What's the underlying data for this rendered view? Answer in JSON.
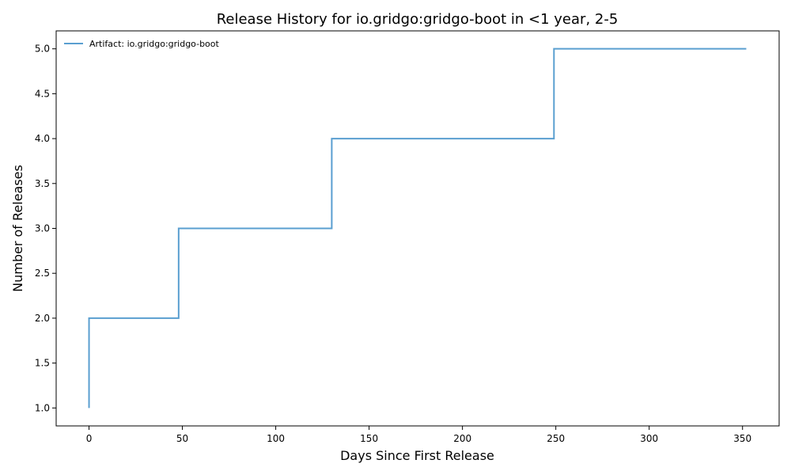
{
  "chart_data": {
    "type": "line",
    "drawstyle": "steps-post",
    "title": "Release History for io.gridgo:gridgo-boot in <1 year, 2-5",
    "xlabel": "Days Since First Release",
    "ylabel": "Number of Releases",
    "xlim": [
      -17.6,
      369.6
    ],
    "ylim": [
      0.8,
      5.2
    ],
    "xticks": [
      0,
      50,
      100,
      150,
      200,
      250,
      300,
      350
    ],
    "xtick_labels": [
      "0",
      "50",
      "100",
      "150",
      "200",
      "250",
      "300",
      "350"
    ],
    "yticks": [
      1.0,
      1.5,
      2.0,
      2.5,
      3.0,
      3.5,
      4.0,
      4.5,
      5.0
    ],
    "ytick_labels": [
      "1.0",
      "1.5",
      "2.0",
      "2.5",
      "3.0",
      "3.5",
      "4.0",
      "4.5",
      "5.0"
    ],
    "grid": false,
    "legend_position": "top-left",
    "series": [
      {
        "name": "Artifact: io.gridgo:gridgo-boot",
        "color": "#5a9fd0",
        "x": [
          0,
          0,
          48,
          130,
          249,
          352
        ],
        "y": [
          1,
          2,
          3,
          4,
          5,
          5
        ]
      }
    ]
  }
}
